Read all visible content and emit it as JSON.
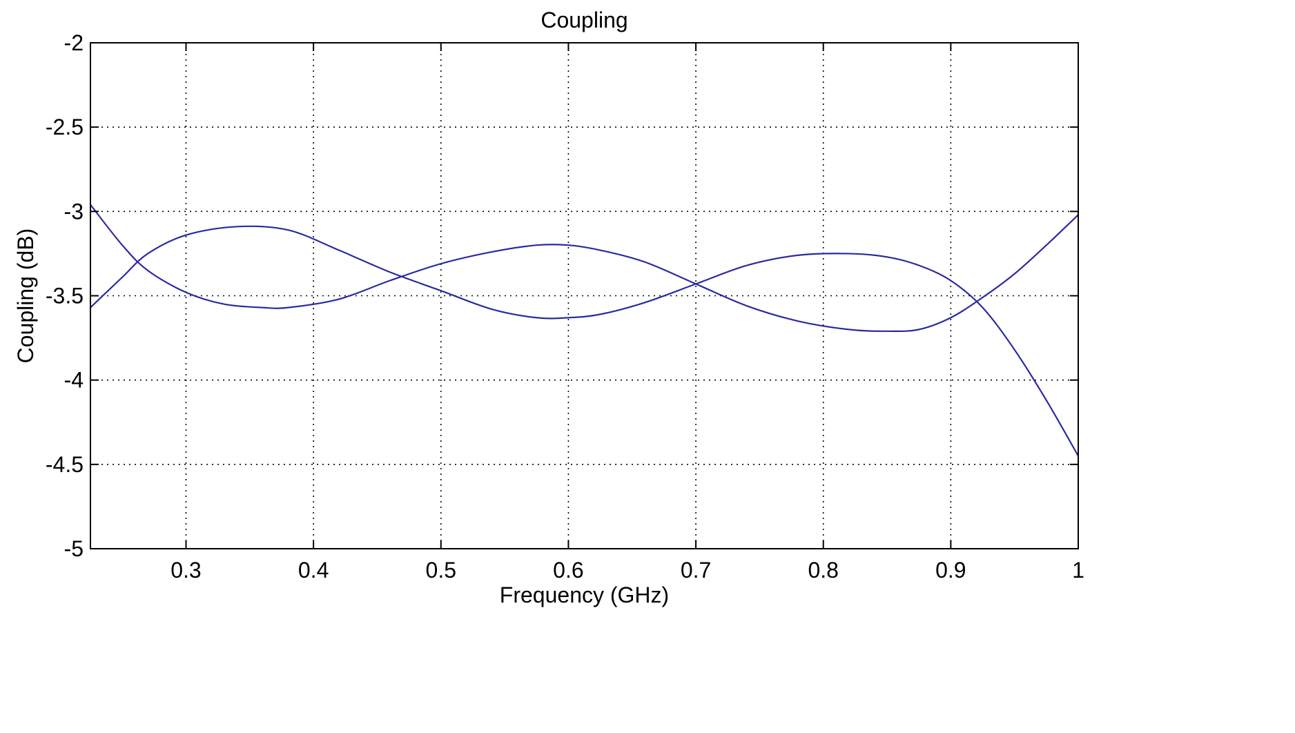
{
  "chart_data": {
    "type": "line",
    "title": "Coupling",
    "xlabel": "Frequency (GHz)",
    "ylabel": "Coupling (dB)",
    "xlim": [
      0.225,
      1.0
    ],
    "ylim": [
      -5,
      -2
    ],
    "grid": true,
    "grid_style": "dotted",
    "legend": "none",
    "line_color": "#2a2aa0",
    "x_ticks": [
      0.3,
      0.4,
      0.5,
      0.6,
      0.7,
      0.8,
      0.9,
      1.0
    ],
    "x_tick_labels": [
      "0.3",
      "0.4",
      "0.5",
      "0.6",
      "0.7",
      "0.8",
      "0.9",
      "1"
    ],
    "y_ticks": [
      -2,
      -2.5,
      -3,
      -3.5,
      -4,
      -4.5,
      -5
    ],
    "y_tick_labels": [
      "-2",
      "-2.5",
      "-3",
      "-3.5",
      "-4",
      "-4.5",
      "-5"
    ],
    "series": [
      {
        "x": [
          0.225,
          0.25,
          0.27,
          0.3,
          0.34,
          0.38,
          0.42,
          0.46,
          0.5,
          0.54,
          0.575,
          0.6,
          0.625,
          0.66,
          0.7,
          0.74,
          0.78,
          0.82,
          0.85,
          0.875,
          0.9,
          0.925,
          0.95,
          0.975,
          1.0
        ],
        "values": [
          -3.57,
          -3.39,
          -3.25,
          -3.14,
          -3.09,
          -3.11,
          -3.23,
          -3.36,
          -3.47,
          -3.58,
          -3.63,
          -3.63,
          -3.61,
          -3.54,
          -3.43,
          -3.32,
          -3.26,
          -3.25,
          -3.27,
          -3.32,
          -3.41,
          -3.57,
          -3.82,
          -4.12,
          -4.45
        ]
      },
      {
        "x": [
          0.225,
          0.25,
          0.27,
          0.3,
          0.33,
          0.36,
          0.38,
          0.42,
          0.46,
          0.5,
          0.54,
          0.575,
          0.6,
          0.625,
          0.66,
          0.7,
          0.74,
          0.78,
          0.82,
          0.85,
          0.875,
          0.9,
          0.925,
          0.95,
          0.975,
          1.0
        ],
        "values": [
          -2.96,
          -3.2,
          -3.35,
          -3.48,
          -3.55,
          -3.57,
          -3.57,
          -3.52,
          -3.41,
          -3.31,
          -3.24,
          -3.2,
          -3.2,
          -3.23,
          -3.3,
          -3.43,
          -3.56,
          -3.65,
          -3.7,
          -3.71,
          -3.7,
          -3.63,
          -3.51,
          -3.37,
          -3.2,
          -3.02
        ]
      }
    ]
  }
}
